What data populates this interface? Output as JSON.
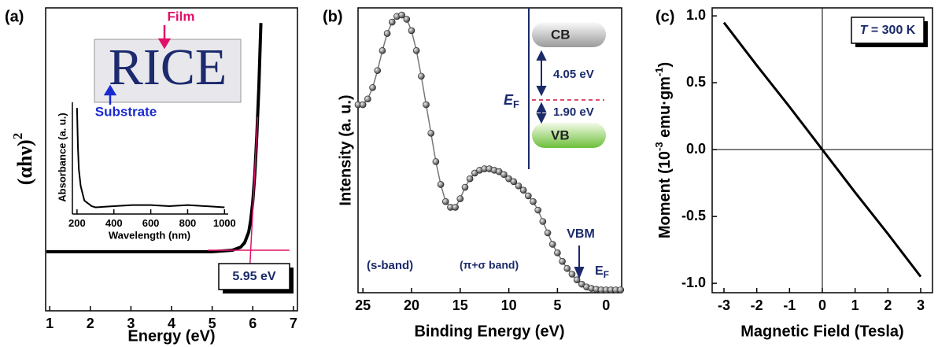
{
  "chart_data": [
    {
      "type": "line",
      "panel_label": "(a)",
      "xlabel": "Energy (eV)",
      "ylabel": [
        "(αhν)",
        "2"
      ],
      "xlim": [
        0.9,
        7.1
      ],
      "xticks": [
        1,
        2,
        3,
        4,
        5,
        6,
        7
      ],
      "ylim": [
        0,
        1
      ],
      "series": [
        {
          "color": "#000000",
          "width": 4,
          "x": [
            0.92,
            2,
            3,
            4,
            5,
            5.5,
            5.7,
            5.8,
            5.9,
            5.95,
            6.0,
            6.05,
            6.1,
            6.15,
            6.2
          ],
          "values": [
            0.195,
            0.195,
            0.195,
            0.195,
            0.195,
            0.2,
            0.21,
            0.225,
            0.26,
            0.3,
            0.36,
            0.45,
            0.58,
            0.74,
            0.95
          ]
        },
        {
          "color": "#e0106a",
          "width": 1.5,
          "x": [
            4.9,
            6.9
          ],
          "values": [
            0.2,
            0.2
          ]
        },
        {
          "color": "#e0106a",
          "width": 1.5,
          "x": [
            5.93,
            6.12
          ],
          "values": [
            0.15,
            0.64
          ]
        }
      ],
      "annotations": {
        "film": "Film",
        "substrate": "Substrate",
        "image_text": "RICE",
        "gap": "5.95 eV"
      }
    },
    {
      "type": "line",
      "xlabel": "Wavelength (nm)",
      "ylabel": "Absorbance (a. u.)",
      "xlim": [
        175,
        1020
      ],
      "xticks": [
        200,
        400,
        600,
        800,
        1000
      ],
      "ylim": [
        0,
        1
      ],
      "series": [
        {
          "color": "#000000",
          "width": 2,
          "x": [
            200,
            205,
            210,
            220,
            240,
            280,
            300,
            400,
            500,
            600,
            700,
            800,
            900,
            1000
          ],
          "values": [
            0.95,
            0.6,
            0.4,
            0.25,
            0.12,
            0.07,
            0.06,
            0.07,
            0.08,
            0.08,
            0.07,
            0.08,
            0.07,
            0.06
          ]
        }
      ]
    },
    {
      "type": "scatter-line",
      "panel_label": "(b)",
      "xlabel": "Binding Energy (eV)",
      "ylabel": "Intensity (a. u.)",
      "xlim": [
        25.5,
        -1.6
      ],
      "xticks": [
        25,
        20,
        15,
        10,
        5,
        0
      ],
      "ylim": [
        0,
        1
      ],
      "series": [
        {
          "color": "#777777",
          "width": 1.5,
          "x": [
            25.5,
            25,
            24.5,
            24,
            23.5,
            23,
            22.5,
            22,
            21.5,
            21,
            20.5,
            20,
            19.5,
            19,
            18.5,
            18,
            17.5,
            17,
            16.5,
            16,
            15.5,
            15,
            14.5,
            14,
            13.5,
            13,
            12.5,
            12,
            11.5,
            11,
            10.5,
            10,
            9.5,
            9,
            8.5,
            8,
            7.5,
            7,
            6.5,
            6,
            5.5,
            5,
            4.5,
            4,
            3.5,
            3,
            2.5,
            2,
            1.5,
            1,
            0.5,
            0,
            -0.5,
            -1,
            -1.5
          ],
          "values": [
            0.66,
            0.66,
            0.68,
            0.72,
            0.78,
            0.85,
            0.91,
            0.95,
            0.97,
            0.975,
            0.96,
            0.92,
            0.85,
            0.76,
            0.66,
            0.56,
            0.46,
            0.38,
            0.32,
            0.3,
            0.3,
            0.33,
            0.37,
            0.4,
            0.42,
            0.43,
            0.435,
            0.435,
            0.43,
            0.425,
            0.415,
            0.4,
            0.39,
            0.375,
            0.36,
            0.34,
            0.32,
            0.29,
            0.25,
            0.21,
            0.17,
            0.14,
            0.11,
            0.085,
            0.065,
            0.045,
            0.03,
            0.02,
            0.015,
            0.012,
            0.01,
            0.01,
            0.01,
            0.01,
            0.01
          ]
        }
      ],
      "annotations": {
        "s_band": "(s-band)",
        "pi_sigma": "(π+σ band)",
        "vbm": "VBM",
        "ef": [
          "E",
          "F"
        ],
        "cb": "CB",
        "vb": "VB",
        "gap_cb": "4.05 eV",
        "gap_vb": "1.90 eV",
        "ef_inset": [
          "E",
          "F"
        ]
      }
    },
    {
      "type": "line",
      "panel_label": "(c)",
      "xlabel": "Magnetic Field (Tesla)",
      "ylabel": [
        "Moment (10",
        "-3",
        " emu·gm",
        "-1",
        ")"
      ],
      "xlim": [
        -3.36,
        3.36
      ],
      "xticks": [
        -3,
        -2,
        -1,
        0,
        1,
        2,
        3
      ],
      "ylim": [
        -1.07,
        1.06
      ],
      "yticks": [
        {
          "value": 1,
          "label": "1.0"
        },
        0.5,
        {
          "value": 0,
          "label": "0.0"
        },
        -0.5,
        {
          "value": -1,
          "label": "-1.0"
        }
      ],
      "series": [
        {
          "color": "#000000",
          "width": 3,
          "x": [
            -3,
            -2,
            -1,
            -0.5,
            0,
            0.5,
            1,
            2,
            3
          ],
          "values": [
            0.95,
            0.63,
            0.32,
            0.16,
            0,
            -0.16,
            -0.32,
            -0.63,
            -0.95
          ]
        }
      ],
      "annotations": {
        "temp": [
          "T",
          " = 300 K"
        ]
      }
    }
  ]
}
